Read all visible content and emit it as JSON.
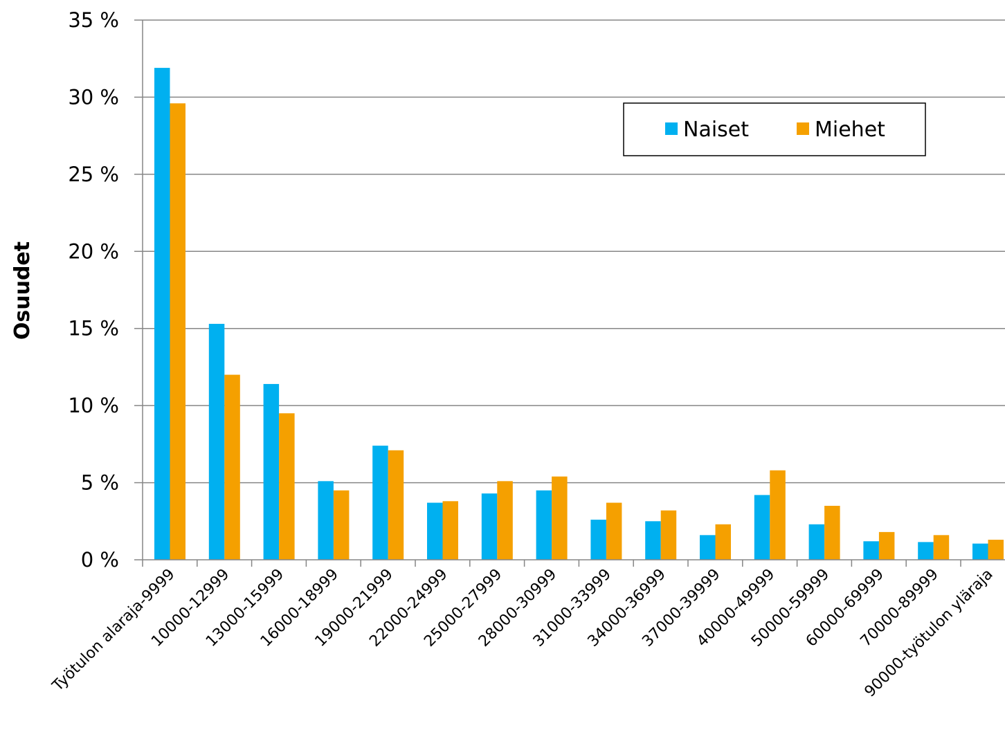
{
  "chart_data": {
    "type": "bar",
    "title": "",
    "xlabel": "",
    "ylabel": "Osuudet",
    "ylim": [
      0,
      35
    ],
    "ytick_values": [
      0,
      5,
      10,
      15,
      20,
      25,
      30,
      35
    ],
    "ytick_labels": [
      "0 %",
      "5 %",
      "10 %",
      "15 %",
      "20 %",
      "25 %",
      "30 %",
      "35 %"
    ],
    "grid": "horizontal",
    "legend_position": "top-right",
    "categories": [
      "Työtulon alaraja-9999",
      "10000-12999",
      "13000-15999",
      "16000-18999",
      "19000-21999",
      "22000-24999",
      "25000-27999",
      "28000-30999",
      "31000-33999",
      "34000-36999",
      "37000-39999",
      "40000-49999",
      "50000-59999",
      "60000-69999",
      "70000-89999",
      "90000-työtulon yläraja"
    ],
    "series": [
      {
        "name": "Naiset",
        "color": "#00b0f0",
        "values": [
          31.9,
          15.3,
          11.4,
          5.1,
          7.4,
          3.7,
          4.3,
          4.5,
          2.6,
          2.5,
          1.6,
          4.2,
          2.3,
          1.2,
          1.15,
          1.05
        ]
      },
      {
        "name": "Miehet",
        "color": "#f5a000",
        "values": [
          29.6,
          12.0,
          9.5,
          4.5,
          7.1,
          3.8,
          5.1,
          5.4,
          3.7,
          3.2,
          2.3,
          5.8,
          3.5,
          1.8,
          1.6,
          1.3
        ]
      }
    ]
  }
}
